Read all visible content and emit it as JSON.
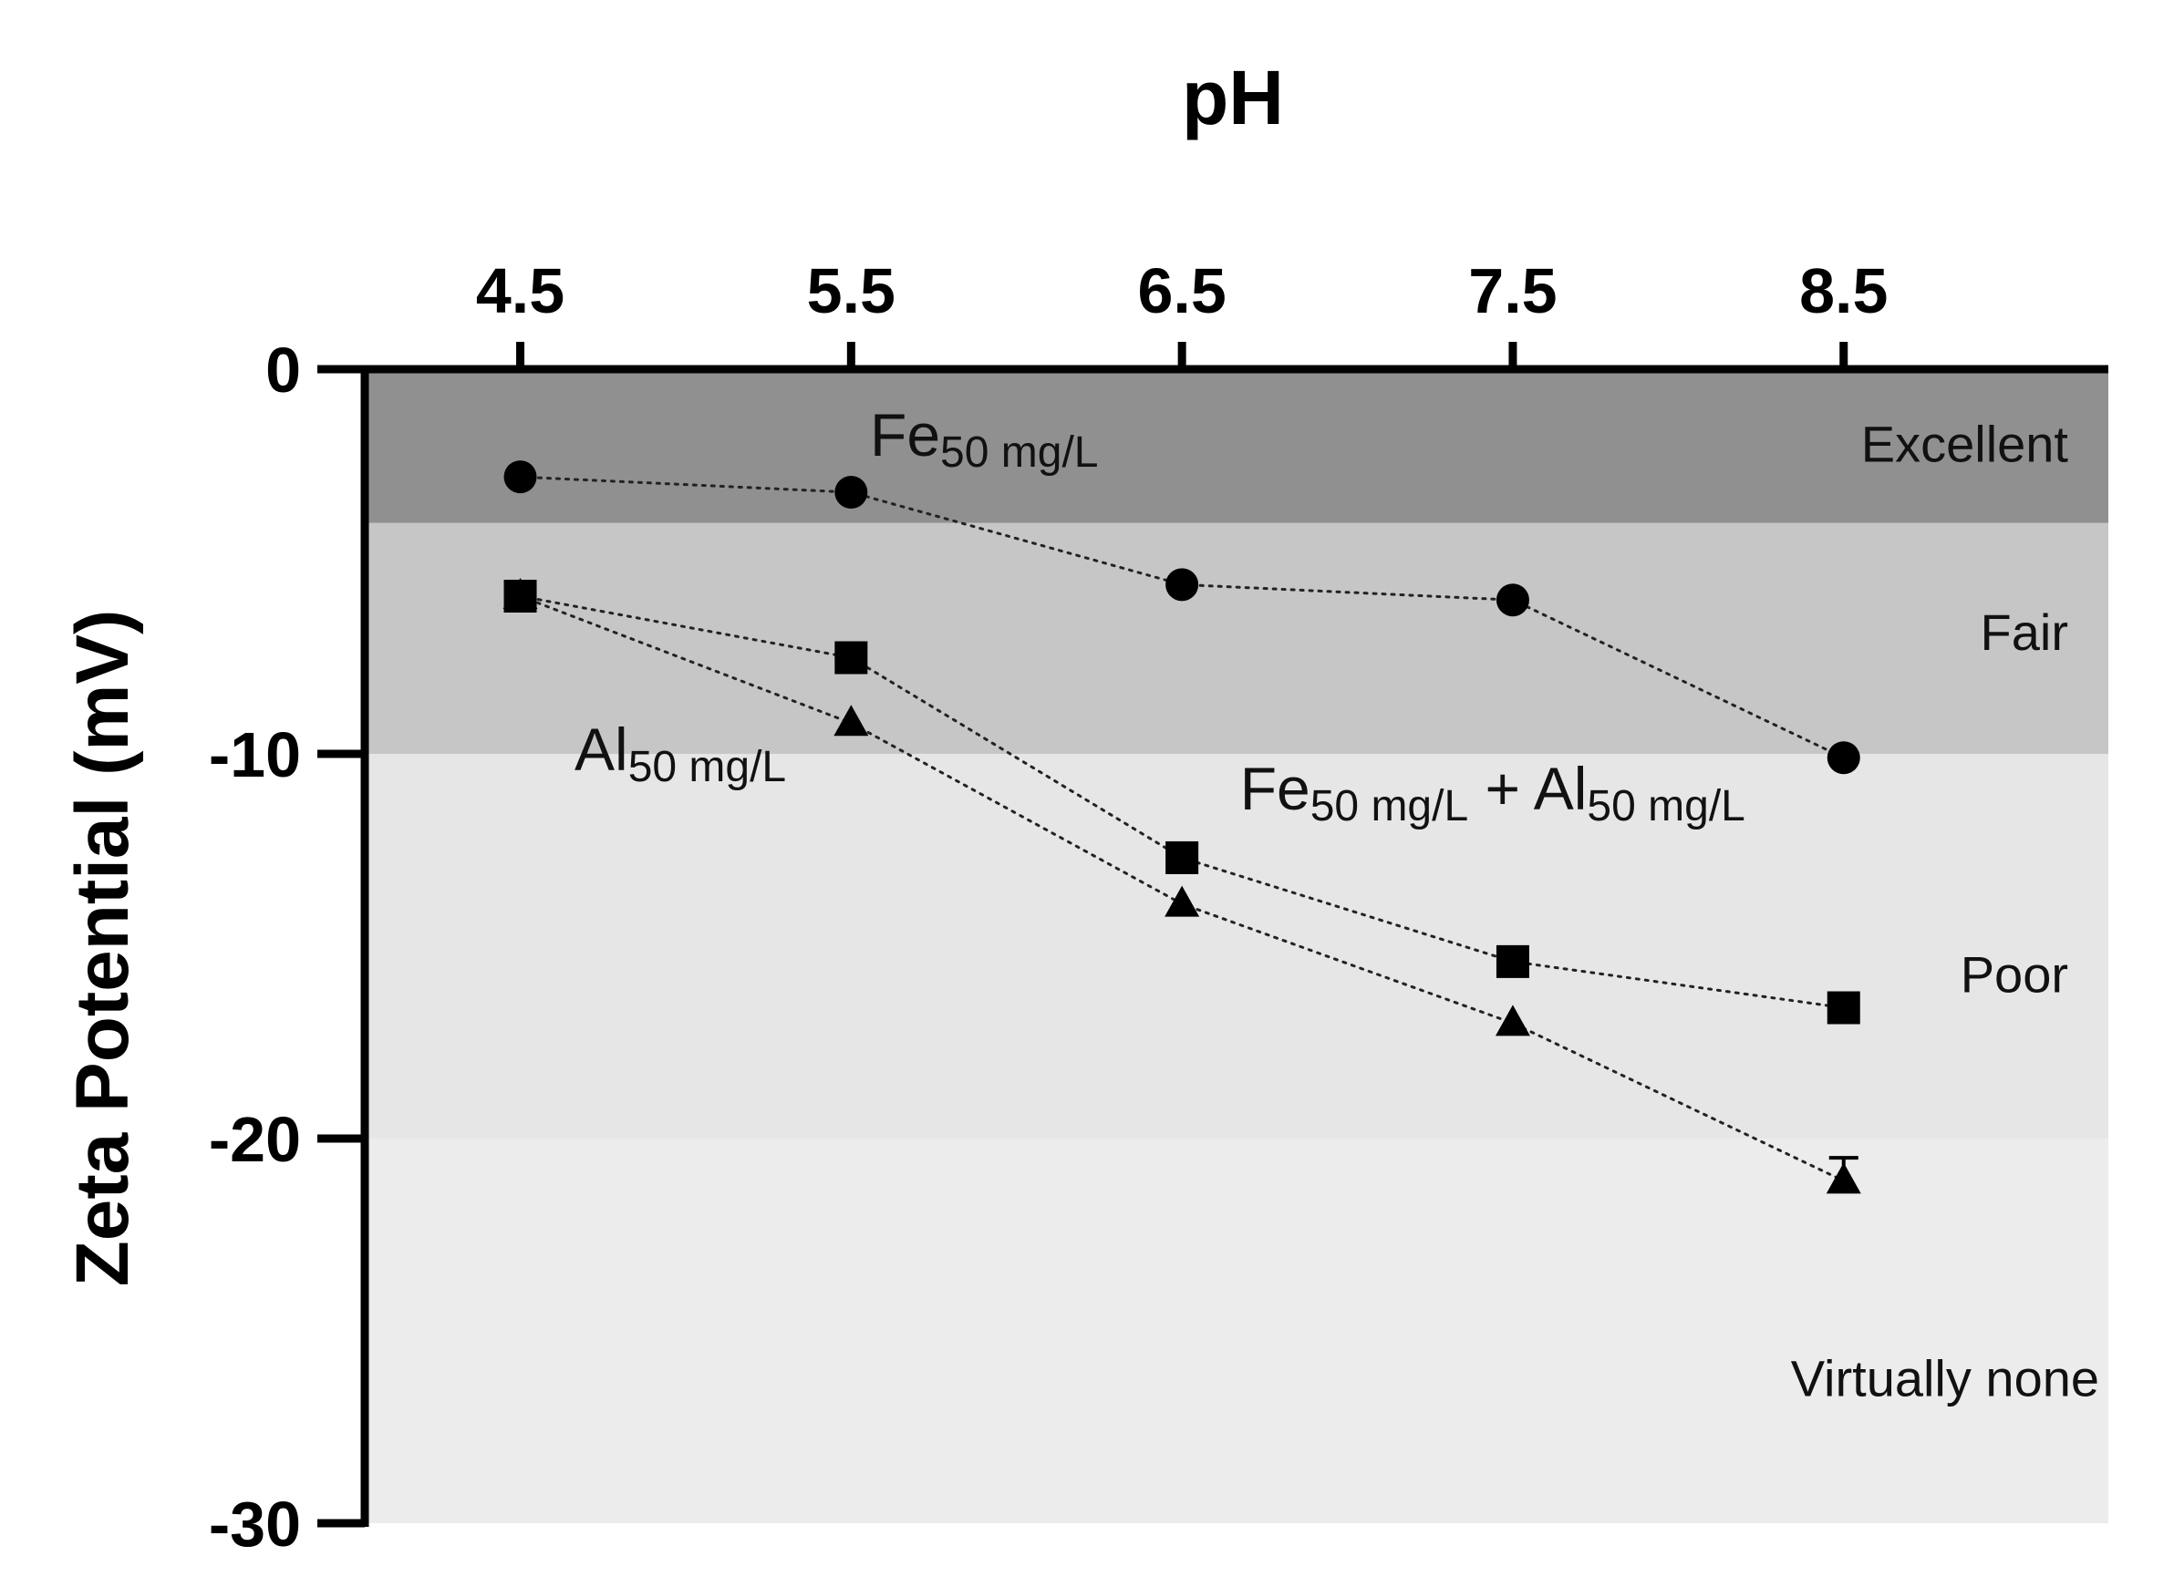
{
  "chart_data": {
    "type": "line",
    "title": "",
    "xlabel": "pH",
    "ylabel": "Zeta Potential (mV)",
    "x": [
      4.5,
      5.5,
      6.5,
      7.5,
      8.5
    ],
    "x_tick_labels": [
      "4.5",
      "5.5",
      "6.5",
      "7.5",
      "8.5"
    ],
    "xlim": [
      4.03,
      9.3
    ],
    "ylim": [
      -30,
      0
    ],
    "y_ticks": [
      0,
      -10,
      -20,
      -30
    ],
    "y_tick_labels": [
      "0",
      "-10",
      "-20",
      "-30"
    ],
    "x_axis_position": "top",
    "bands": [
      {
        "label": "Excellent",
        "from": 0,
        "to": -4,
        "color": "#909090"
      },
      {
        "label": "Fair",
        "from": -4,
        "to": -10,
        "color": "#c6c6c6"
      },
      {
        "label": "Poor",
        "from": -10,
        "to": -20,
        "color": "#e6e6e6"
      },
      {
        "label": "Virtually none",
        "from": -20,
        "to": -30,
        "color": "#ececec"
      }
    ],
    "series": [
      {
        "name": "Fe50 mg/L",
        "label_main": "Fe",
        "label_sub": "50 mg/L",
        "marker": "circle",
        "values": [
          -2.8,
          -3.2,
          -5.6,
          -6.0,
          -10.1
        ]
      },
      {
        "name": "Fe50 mg/L + Al50 mg/L",
        "label_main": "Fe",
        "label_sub": "50 mg/L",
        "label_plus": " + ",
        "label_main2": "Al",
        "label_sub2": "50 mg/L",
        "marker": "square",
        "values": [
          -5.9,
          -7.5,
          -12.7,
          -15.4,
          -16.6
        ]
      },
      {
        "name": "Al50 mg/L",
        "label_main": "Al",
        "label_sub": "50 mg/L",
        "marker": "triangle",
        "values": [
          -5.9,
          -9.2,
          -13.9,
          -17.0,
          -21.1
        ],
        "error": [
          0,
          0,
          0,
          0,
          0.6
        ]
      }
    ]
  }
}
